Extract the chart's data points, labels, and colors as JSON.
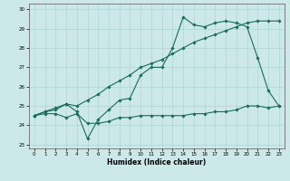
{
  "title": "",
  "xlabel": "Humidex (Indice chaleur)",
  "ylabel": "",
  "background_color": "#cce8e8",
  "line_color": "#1a6b5a",
  "xlim": [
    -0.5,
    23.5
  ],
  "ylim": [
    22.8,
    30.3
  ],
  "xticks": [
    0,
    1,
    2,
    3,
    4,
    5,
    6,
    7,
    8,
    9,
    10,
    11,
    12,
    13,
    14,
    15,
    16,
    17,
    18,
    19,
    20,
    21,
    22,
    23
  ],
  "yticks": [
    23,
    24,
    25,
    26,
    27,
    28,
    29,
    30
  ],
  "grid_color": "#afd4d4",
  "series": [
    {
      "x": [
        0,
        1,
        2,
        3,
        4,
        5,
        6,
        7,
        8,
        9,
        10,
        11,
        12,
        13,
        14,
        15,
        16,
        17,
        18,
        19,
        20,
        21,
        22,
        23
      ],
      "y": [
        24.5,
        24.6,
        24.6,
        24.4,
        24.6,
        24.1,
        24.1,
        24.2,
        24.4,
        24.4,
        24.5,
        24.5,
        24.5,
        24.5,
        24.5,
        24.6,
        24.6,
        24.7,
        24.7,
        24.8,
        25.0,
        25.0,
        24.9,
        25.0
      ]
    },
    {
      "x": [
        0,
        1,
        2,
        3,
        4,
        5,
        6,
        7,
        8,
        9,
        10,
        11,
        12,
        13,
        14,
        15,
        16,
        17,
        18,
        19,
        20,
        21,
        22,
        23
      ],
      "y": [
        24.5,
        24.7,
        24.8,
        25.1,
        24.7,
        23.3,
        24.3,
        24.8,
        25.3,
        25.4,
        26.6,
        27.0,
        27.0,
        28.0,
        29.6,
        29.2,
        29.1,
        29.3,
        29.4,
        29.3,
        29.1,
        27.5,
        25.8,
        25.0
      ]
    },
    {
      "x": [
        0,
        1,
        2,
        3,
        4,
        5,
        6,
        7,
        8,
        9,
        10,
        11,
        12,
        13,
        14,
        15,
        16,
        17,
        18,
        19,
        20,
        21,
        22,
        23
      ],
      "y": [
        24.5,
        24.7,
        24.9,
        25.1,
        25.0,
        25.3,
        25.6,
        26.0,
        26.3,
        26.6,
        27.0,
        27.2,
        27.4,
        27.7,
        28.0,
        28.3,
        28.5,
        28.7,
        28.9,
        29.1,
        29.3,
        29.4,
        29.4,
        29.4
      ]
    }
  ]
}
